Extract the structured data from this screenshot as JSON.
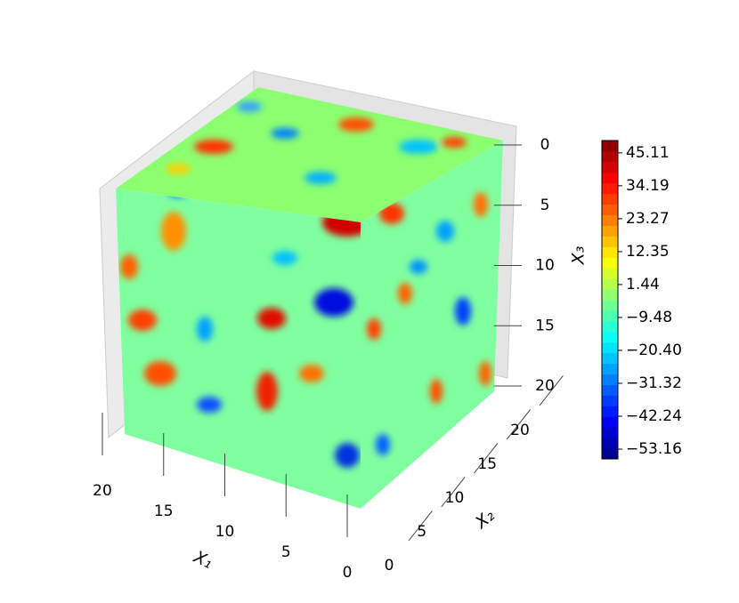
{
  "chart_data": {
    "type": "cube",
    "colormap": "jet",
    "xlabel": "X₁",
    "ylabel": "X₂",
    "zlabel": "X₃",
    "xlim": [
      0,
      20
    ],
    "xticks": [
      0,
      5,
      10,
      15,
      20
    ],
    "ylim": [
      0,
      20
    ],
    "yticks": [
      0,
      5,
      10,
      15,
      20
    ],
    "zlim": [
      0,
      20
    ],
    "zticks": [
      0,
      5,
      10,
      15,
      20
    ],
    "clim": [
      -56.4,
      49.2
    ],
    "cticks": [
      {
        "value": 45.11,
        "label": "45.11"
      },
      {
        "value": 34.19,
        "label": "34.19"
      },
      {
        "value": 23.27,
        "label": "23.27"
      },
      {
        "value": 12.35,
        "label": "12.35"
      },
      {
        "value": 1.44,
        "label": "1.44"
      },
      {
        "value": -9.48,
        "label": "−9.48"
      },
      {
        "value": -20.4,
        "label": "−20.40"
      },
      {
        "value": -31.32,
        "label": "−31.32"
      },
      {
        "value": -42.24,
        "label": "−42.24"
      },
      {
        "value": -53.16,
        "label": "−53.16"
      }
    ]
  }
}
